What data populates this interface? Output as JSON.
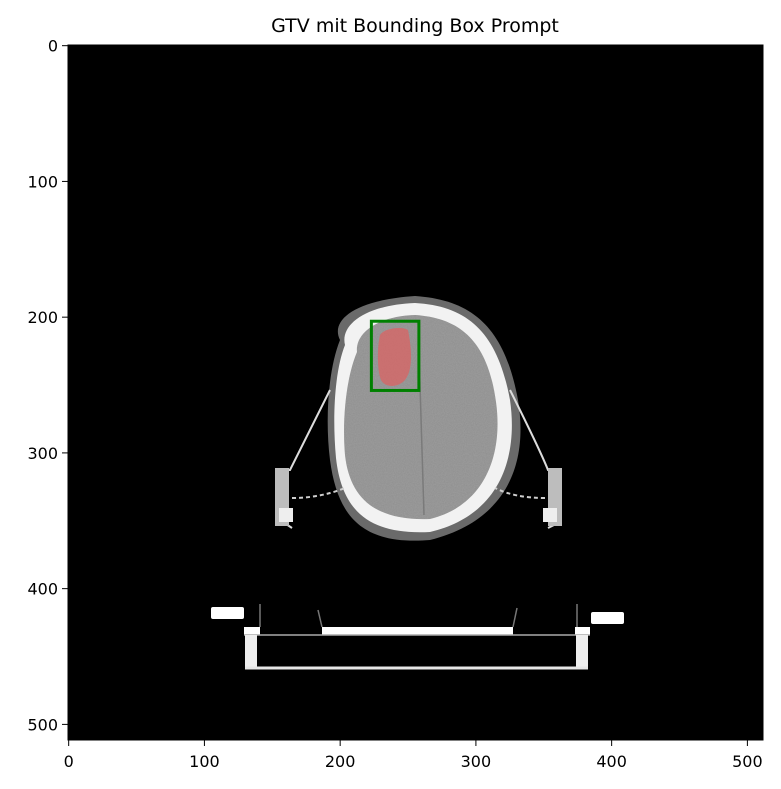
{
  "figure": {
    "title": "GTV mit Bounding Box Prompt",
    "image_size": [
      512,
      512
    ],
    "background_color": "#000000"
  },
  "x_axis": {
    "ticks": [
      0,
      100,
      200,
      300,
      400,
      500
    ]
  },
  "y_axis": {
    "ticks": [
      0,
      100,
      200,
      300,
      400,
      500
    ]
  },
  "annotations": {
    "bounding_box": {
      "x_range": [
        223,
        258
      ],
      "y_range": [
        203,
        254
      ],
      "color": "#008000"
    },
    "gtv_mask": {
      "color": "#e06060",
      "opacity": 0.7
    }
  }
}
